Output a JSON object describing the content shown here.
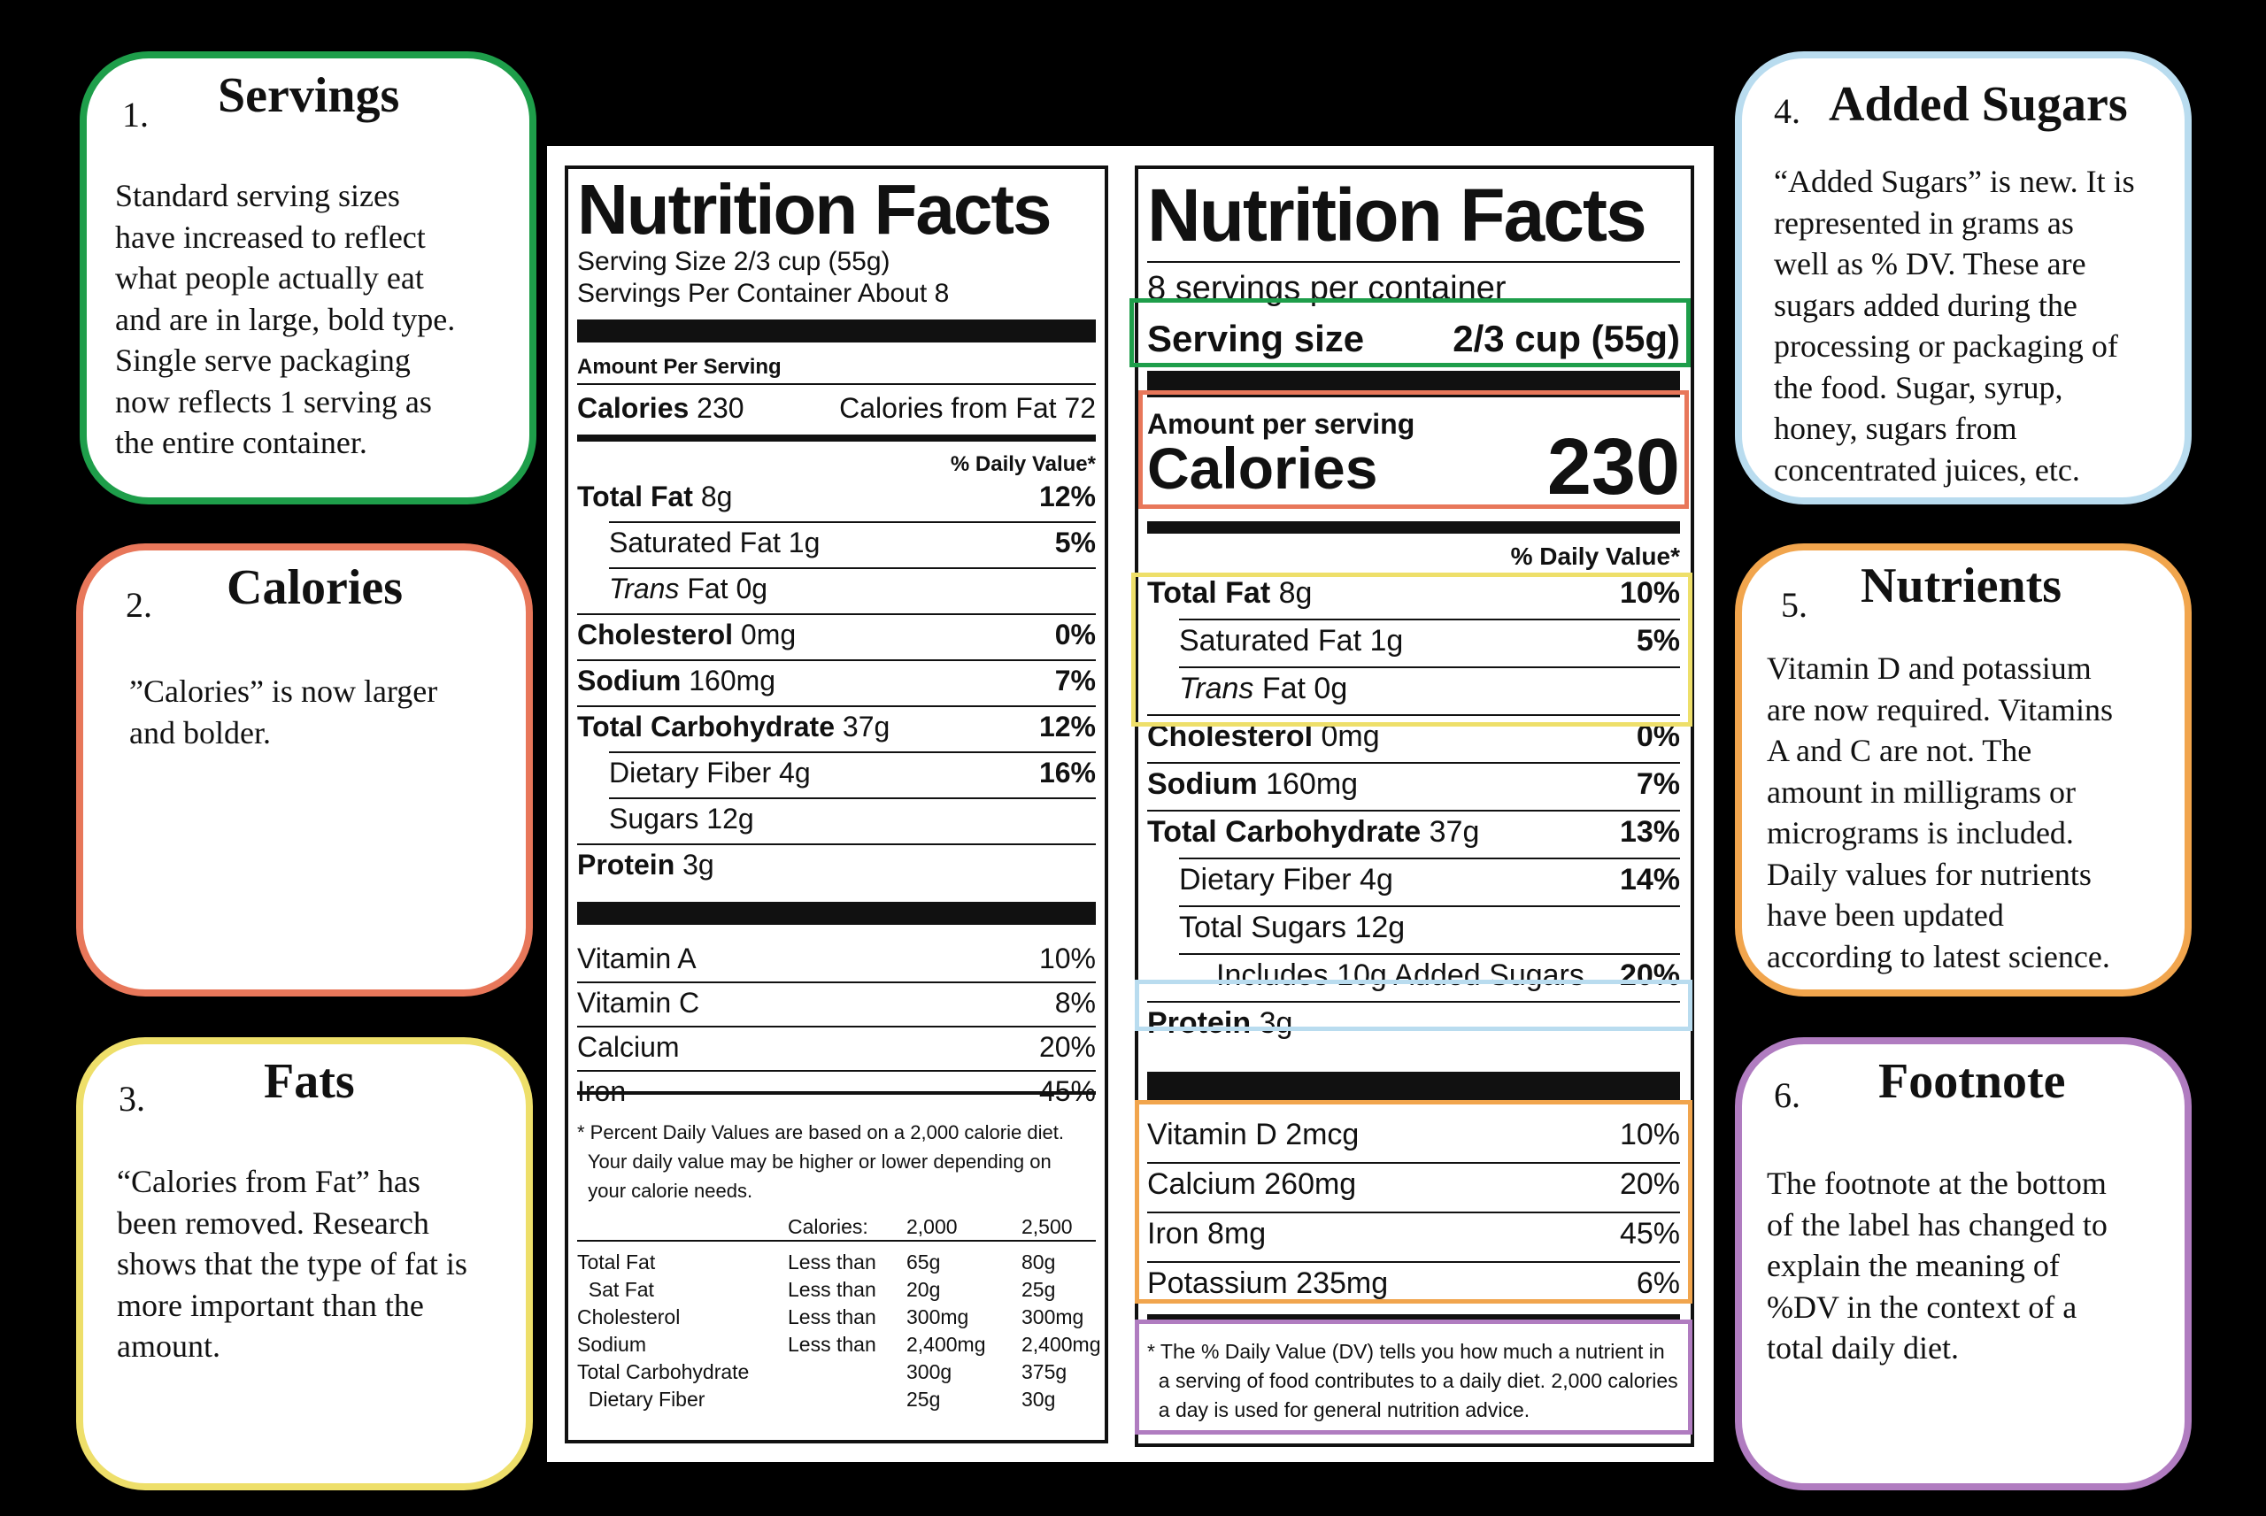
{
  "colors": {
    "servings": "#1e9e4a",
    "calories": "#e8775a",
    "fats": "#eedf6a",
    "added_sugars": "#b9dcef",
    "nutrients": "#f1a54d",
    "footnote": "#b07cc0"
  },
  "cards": [
    {
      "num": "1.",
      "title": "Servings",
      "text": "Standard serving sizes\nhave increased to reflect\nwhat people actually eat\nand are in large, bold type.\nSingle serve packaging\nnow reflects 1 serving as\nthe entire container."
    },
    {
      "num": "2.",
      "title": "Calories",
      "text": "”Calories” is now larger\nand bolder."
    },
    {
      "num": "3.",
      "title": "Fats",
      "text": "“Calories from Fat” has\nbeen removed. Research\nshows that the type of fat is\nmore important than the\namount."
    },
    {
      "num": "4.",
      "title": "Added Sugars",
      "text": "“Added Sugars” is new. It is\nrepresented in grams as\nwell as % DV. These are\nsugars added during the\nprocessing or packaging of\nthe food. Sugar, syrup,\nhoney, sugars from\nconcentrated juices, etc."
    },
    {
      "num": "5.",
      "title": "Nutrients",
      "text": "Vitamin D and potassium\nare now required. Vitamins\nA and C are not. The\namount in milligrams or\nmicrograms is included.\nDaily values for nutrients\nhave been updated\naccording to latest science."
    },
    {
      "num": "6.",
      "title": "Footnote",
      "text": "The footnote at the bottom\nof the label has changed to\nexplain the meaning of\n%DV in the context of a\ntotal daily diet."
    }
  ],
  "old_label": {
    "title": "Nutrition Facts",
    "serving_size": "Serving Size 2/3 cup (55g)",
    "servings_per": "Servings Per Container About 8",
    "amount_per": "Amount Per Serving",
    "calories_b": "Calories",
    "calories_v": " 230",
    "calories_fat": "Calories from Fat 72",
    "dv_header": "% Daily Value*",
    "rows": [
      {
        "b": "Total Fat",
        "t": " 8g",
        "v": "12%"
      },
      {
        "b": "",
        "t": "Saturated Fat 1g",
        "v": "5%"
      },
      {
        "b": "",
        "i": "Trans",
        "t": " Fat 0g",
        "v": ""
      },
      {
        "b": "Cholesterol",
        "t": " 0mg",
        "v": "0%"
      },
      {
        "b": "Sodium",
        "t": " 160mg",
        "v": "7%"
      },
      {
        "b": "Total Carbohydrate",
        "t": " 37g",
        "v": "12%"
      },
      {
        "b": "",
        "t": "Dietary Fiber 4g",
        "v": "16%"
      },
      {
        "b": "",
        "t": "Sugars 12g",
        "v": ""
      },
      {
        "b": "Protein",
        "t": " 3g",
        "v": ""
      }
    ],
    "vitamins": [
      {
        "t": "Vitamin A",
        "v": "10%"
      },
      {
        "t": "Vitamin C",
        "v": "8%"
      },
      {
        "t": "Calcium",
        "v": "20%"
      },
      {
        "t": "Iron",
        "v": "45%"
      }
    ],
    "footnote": "* Percent Daily Values are based on a 2,000 calorie diet.\n  Your daily value may be higher or lower depending on\n  your calorie needs.",
    "table_head": [
      "Calories:",
      "2,000",
      "2,500"
    ],
    "table_rows": [
      [
        "Total Fat",
        "Less than",
        "65g",
        "80g"
      ],
      [
        "  Sat Fat",
        "Less than",
        "20g",
        "25g"
      ],
      [
        "Cholesterol",
        "Less than",
        "300mg",
        "300mg"
      ],
      [
        "Sodium",
        "Less than",
        "2,400mg",
        "2,400mg"
      ],
      [
        "Total Carbohydrate",
        "",
        "300g",
        "375g"
      ],
      [
        "  Dietary Fiber",
        "",
        "25g",
        "30g"
      ]
    ]
  },
  "new_label": {
    "title": "Nutrition Facts",
    "servings_per": "8 servings per container",
    "serving_size_label": "Serving size",
    "serving_size_value": "2/3 cup (55g)",
    "amount_per": "Amount per serving",
    "calories_label": "Calories",
    "calories_value": "230",
    "dv_header": "% Daily Value*",
    "rows": [
      {
        "b": "Total Fat",
        "t": " 8g",
        "v": "10%"
      },
      {
        "b": "",
        "t": "Saturated Fat 1g",
        "v": "5%"
      },
      {
        "b": "",
        "i": "Trans",
        "t": " Fat 0g",
        "v": ""
      },
      {
        "b": "Cholesterol",
        "t": " 0mg",
        "v": "0%"
      },
      {
        "b": "Sodium",
        "t": " 160mg",
        "v": "7%"
      },
      {
        "b": "Total Carbohydrate",
        "t": " 37g",
        "v": "13%"
      },
      {
        "b": "",
        "t": "Dietary Fiber 4g",
        "v": "14%"
      },
      {
        "b": "",
        "t": "Total Sugars 12g",
        "v": ""
      },
      {
        "b": "",
        "t": "Includes 10g Added Sugars",
        "v": "20%"
      },
      {
        "b": "Protein",
        "t": " 3g",
        "v": ""
      }
    ],
    "vitamins": [
      {
        "t": "Vitamin D 2mcg",
        "v": "10%"
      },
      {
        "t": "Calcium 260mg",
        "v": "20%"
      },
      {
        "t": "Iron 8mg",
        "v": "45%"
      },
      {
        "t": "Potassium 235mg",
        "v": "6%"
      }
    ],
    "footnote": "* The % Daily Value (DV) tells you how much a nutrient in\n  a serving of food contributes to a daily diet. 2,000 calories\n  a day is used for general nutrition advice."
  }
}
